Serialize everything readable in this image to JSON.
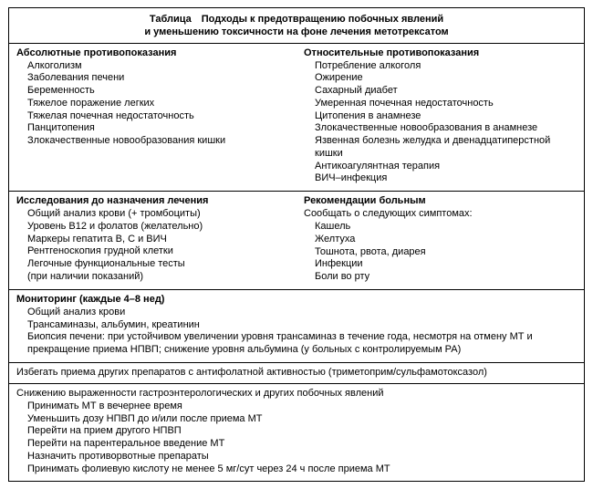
{
  "title_line1": "Таблица Подходы к предотвращению побочных явлений",
  "title_line2": "и уменьшению токсичности на фоне лечения метотрексатом",
  "section1": {
    "left": {
      "heading": "Абсолютные противопоказания",
      "items": [
        "Алкоголизм",
        "Заболевания печени",
        "Беременность",
        "Тяжелое поражение легких",
        "Тяжелая почечная недостаточность",
        "Панцитопения",
        "Злокачественные новообразования кишки"
      ]
    },
    "right": {
      "heading": "Относительные противопоказания",
      "items": [
        "Потребление алкоголя",
        "Ожирение",
        "Сахарный диабет",
        "Умеренная почечная недостаточность",
        "Цитопения в анамнезе",
        "Злокачественные новообразования в анамнезе",
        "Язвенная болезнь желудка и двенадцатиперстной кишки",
        "Антикоагулянтная терапия",
        "ВИЧ–инфекция"
      ]
    }
  },
  "section2": {
    "left": {
      "heading": "Исследования до назначения лечения",
      "items": [
        "Общий анализ крови (+ тромбоциты)",
        "Уровень B12 и фолатов (желательно)",
        "Маркеры гепатита B, C и ВИЧ",
        "Рентгеноскопия грудной клетки",
        "Легочные функциональные тесты",
        "(при наличии показаний)"
      ]
    },
    "right": {
      "heading": "Рекомендации больным",
      "lead": "Сообщать о следующих симптомах:",
      "items": [
        "Кашель",
        "Желтуха",
        "Тошнота, рвота, диарея",
        "Инфекции",
        "Боли во рту"
      ]
    }
  },
  "section3": {
    "heading": "Мониторинг (каждые 4–8 нед)",
    "items": [
      "Общий анализ крови",
      "Трансаминазы, альбумин, креатинин",
      "Биопсия печени: при устойчивом увеличении уровня трансаминаз в течение года, несмотря на отмену МТ и прекращение приема НПВП; снижение уровня альбумина (у больных с контролируемым РА)"
    ]
  },
  "section4": {
    "text": "Избегать приема других препаратов с антифолатной активностью (триметоприм/сульфамотоксазол)"
  },
  "section5": {
    "lead": "Снижению выраженности гастроэнтерологических и других побочных явлений",
    "items": [
      "Принимать МТ в вечернее время",
      "Уменьшить дозу НПВП до и/или после приема МТ",
      "Перейти на прием другого НПВП",
      "Перейти на парентеральное введение МТ",
      "Назначить противорвотные препараты",
      "Принимать фолиевую кислоту не менее 5 мг/сут через 24 ч после приема МТ"
    ]
  }
}
